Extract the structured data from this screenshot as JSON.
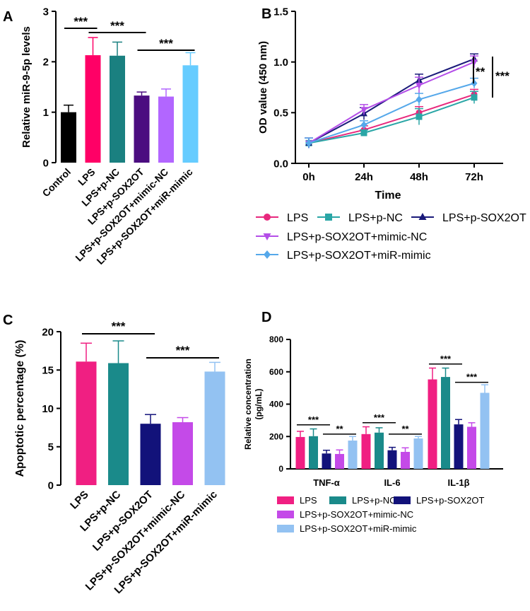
{
  "panel_labels": {
    "a": "A",
    "b": "B",
    "c": "C",
    "d": "D"
  },
  "chart_data": [
    {
      "id": "A",
      "type": "bar",
      "ylabel": "Relative miR-9-5p levels",
      "ylim": [
        0,
        3
      ],
      "yticks": [
        "0",
        "1",
        "2",
        "3"
      ],
      "categories": [
        "Control",
        "LPS",
        "LPS+p-NC",
        "LPS+p-SOX2OT",
        "LPS+p-SOX2OT+mimic-NC",
        "LPS+p-SOX2OT+miR-mimic"
      ],
      "values": [
        1.0,
        2.13,
        2.12,
        1.33,
        1.31,
        1.93
      ],
      "errors": [
        0.14,
        0.35,
        0.27,
        0.07,
        0.15,
        0.25
      ],
      "colors": [
        "#000000",
        "#ff0066",
        "#1a8080",
        "#4b0d80",
        "#b266ff",
        "#66ccff"
      ],
      "significance": [
        {
          "from": 0,
          "to": 1,
          "label": "***"
        },
        {
          "from": 1,
          "to": 3,
          "label": "***"
        },
        {
          "from": 3,
          "to": 5,
          "label": "***"
        }
      ]
    },
    {
      "id": "B",
      "type": "line",
      "ylabel": "OD value (450 nm)",
      "xlabel": "Time",
      "ylim": [
        0,
        1.5
      ],
      "yticks": [
        "0.0",
        "0.5",
        "1.0",
        "1.5"
      ],
      "x": [
        "0h",
        "24h",
        "48h",
        "72h"
      ],
      "series": [
        {
          "name": "LPS",
          "color": "#e8287d",
          "marker": "circle",
          "values": [
            0.2,
            0.33,
            0.5,
            0.68
          ],
          "errors": [
            0.05,
            0.04,
            0.06,
            0.05
          ]
        },
        {
          "name": "LPS+p-NC",
          "color": "#2aa6a6",
          "marker": "square",
          "values": [
            0.2,
            0.3,
            0.46,
            0.65
          ],
          "errors": [
            0.05,
            0.03,
            0.08,
            0.06
          ]
        },
        {
          "name": "LPS+p-SOX2OT",
          "color": "#1a1a7a",
          "marker": "triangle-up",
          "values": [
            0.2,
            0.49,
            0.82,
            1.03
          ],
          "errors": [
            0.05,
            0.06,
            0.06,
            0.05
          ]
        },
        {
          "name": "LPS+p-SOX2OT+mimic-NC",
          "color": "#b44ee8",
          "marker": "triangle-down",
          "values": [
            0.2,
            0.53,
            0.77,
            1.0
          ],
          "errors": [
            0.05,
            0.05,
            0.08,
            0.06
          ]
        },
        {
          "name": "LPS+p-SOX2OT+miR-mimic",
          "color": "#55a8ea",
          "marker": "diamond",
          "values": [
            0.2,
            0.38,
            0.63,
            0.79
          ],
          "errors": [
            0.05,
            0.04,
            0.06,
            0.05
          ]
        }
      ],
      "significance": [
        {
          "label": "**"
        },
        {
          "label": "***"
        }
      ]
    },
    {
      "id": "C",
      "type": "bar",
      "ylabel": "Apoptotic percentage (%)",
      "ylim": [
        0,
        20
      ],
      "yticks": [
        "0",
        "5",
        "10",
        "15",
        "20"
      ],
      "categories": [
        "LPS",
        "LPS+p-NC",
        "LPS+p-SOX2OT",
        "LPS+p-SOX2OT+mimic-NC",
        "LPS+p-SOX2OT+miR-mimic"
      ],
      "values": [
        16.1,
        15.9,
        8.0,
        8.2,
        14.8
      ],
      "errors": [
        2.4,
        2.9,
        1.2,
        0.6,
        1.2
      ],
      "colors": [
        "#f01f82",
        "#1a8a8a",
        "#12127a",
        "#c44ae8",
        "#93c2f2"
      ],
      "significance": [
        {
          "from": 0,
          "to": 2,
          "label": "***"
        },
        {
          "from": 2,
          "to": 4,
          "label": "***"
        }
      ]
    },
    {
      "id": "D",
      "type": "bar",
      "ylabel": "Relative concentration (pg/mL)",
      "ylim": [
        0,
        800
      ],
      "yticks": [
        "0",
        "200",
        "400",
        "600",
        "800"
      ],
      "categories": [
        "TNF-α",
        "IL-6",
        "IL-1β"
      ],
      "series": [
        {
          "name": "LPS",
          "color": "#f01f82",
          "values": [
            197,
            215,
            553
          ],
          "errors": [
            35,
            45,
            70
          ]
        },
        {
          "name": "LPS+p-NC",
          "color": "#1a8a8a",
          "values": [
            202,
            224,
            568
          ],
          "errors": [
            45,
            30,
            55
          ]
        },
        {
          "name": "LPS+p-SOX2OT",
          "color": "#12127a",
          "values": [
            95,
            115,
            275
          ],
          "errors": [
            20,
            18,
            30
          ]
        },
        {
          "name": "LPS+p-SOX2OT+mimic-NC",
          "color": "#c44ae8",
          "values": [
            92,
            105,
            260
          ],
          "errors": [
            25,
            25,
            25
          ]
        },
        {
          "name": "LPS+p-SOX2OT+miR-mimic",
          "color": "#93c2f2",
          "values": [
            175,
            188,
            470
          ],
          "errors": [
            25,
            12,
            50
          ]
        }
      ],
      "significance": [
        {
          "group": 0,
          "from": 0,
          "to": 2,
          "label": "***"
        },
        {
          "group": 0,
          "from": 2,
          "to": 4,
          "label": "**"
        },
        {
          "group": 1,
          "from": 0,
          "to": 2,
          "label": "***"
        },
        {
          "group": 1,
          "from": 2,
          "to": 4,
          "label": "**"
        },
        {
          "group": 2,
          "from": 0,
          "to": 2,
          "label": "***"
        },
        {
          "group": 2,
          "from": 2,
          "to": 4,
          "label": "***"
        }
      ]
    }
  ]
}
